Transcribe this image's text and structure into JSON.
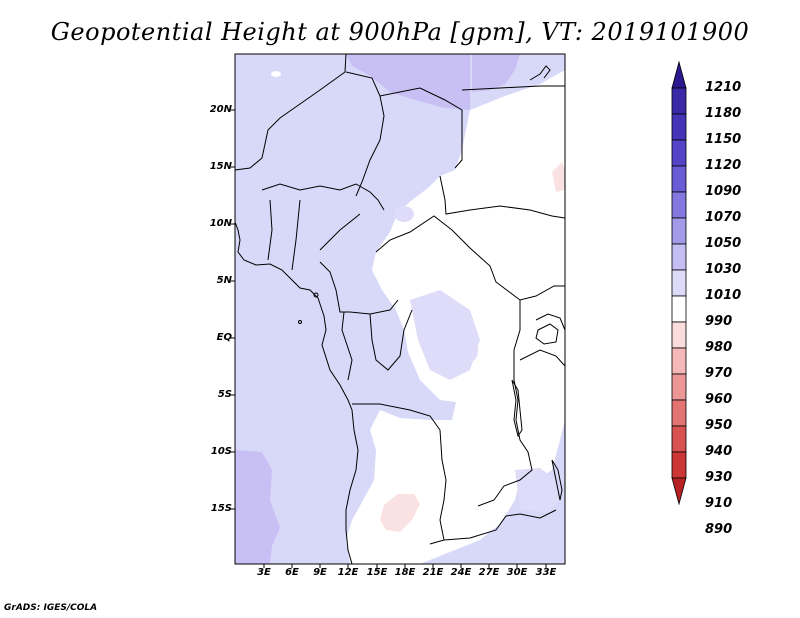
{
  "title": "Geopotential Height at 900hPa [gpm], VT: 2019101900",
  "credit": "GrADS: IGES/COLA",
  "map": {
    "lat_labels": [
      "20N",
      "15N",
      "10N",
      "5N",
      "EQ",
      "5S",
      "10S",
      "15S"
    ],
    "lon_labels": [
      "3E",
      "6E",
      "9E",
      "12E",
      "15E",
      "18E",
      "21E",
      "24E",
      "27E",
      "30E",
      "33E"
    ],
    "field_colors": {
      "ocean_and_west": "#d8d8f8",
      "north_high": "#c8c0f4",
      "low_land": "#ffffff",
      "pink_patch": "#fbe2e2",
      "coastline": "#000000"
    }
  },
  "colorbar": {
    "levels": [
      "1210",
      "1180",
      "1150",
      "1120",
      "1090",
      "1070",
      "1050",
      "1030",
      "1010",
      "990",
      "980",
      "970",
      "960",
      "950",
      "940",
      "930",
      "910",
      "890"
    ],
    "colors": [
      "#2b1a8f",
      "#3a28a6",
      "#4634b8",
      "#5544c8",
      "#6a5cd6",
      "#8478e0",
      "#a49aea",
      "#c4bef2",
      "#deDbf8",
      "#ffffff",
      "#fbdcdc",
      "#f4b8b8",
      "#ec9696",
      "#e27474",
      "#d85252",
      "#cc3636",
      "#b82222"
    ]
  }
}
